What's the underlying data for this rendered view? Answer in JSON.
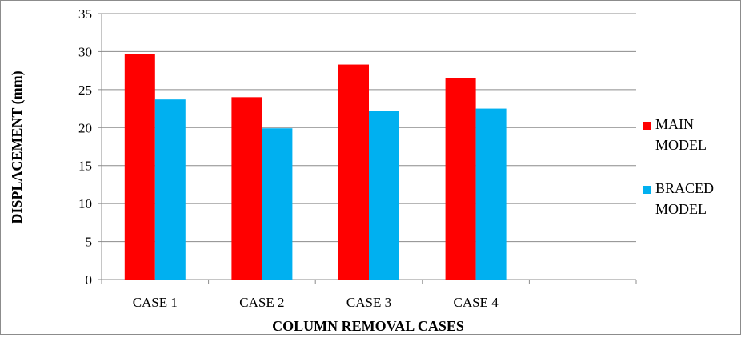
{
  "chart_data": {
    "type": "bar",
    "title": "",
    "xlabel": "COLUMN REMOVAL CASES",
    "ylabel": "DISPLACEMENT (mm)",
    "categories": [
      "CASE 1",
      "CASE 2",
      "CASE 3",
      "CASE 4",
      ""
    ],
    "series": [
      {
        "name": "MAIN MODEL",
        "color": "#ff0000",
        "values": [
          29.7,
          24.0,
          28.3,
          26.5,
          null
        ]
      },
      {
        "name": "BRACED MODEL",
        "color": "#00b0f0",
        "values": [
          23.7,
          19.9,
          22.2,
          22.5,
          null
        ]
      }
    ],
    "ylim": [
      0,
      35
    ],
    "yticks": [
      0,
      5,
      10,
      15,
      20,
      25,
      30,
      35
    ],
    "grid": true,
    "legend_position": "right"
  }
}
